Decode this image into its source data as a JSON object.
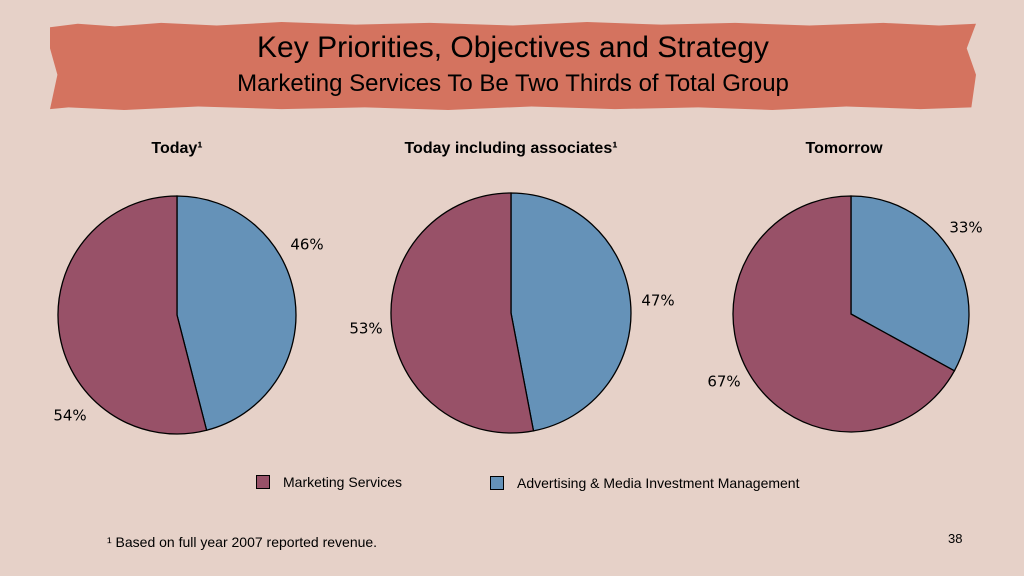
{
  "slide": {
    "title": "Key Priorities, Objectives and Strategy",
    "subtitle": "Marketing Services To Be Two Thirds of Total Group",
    "footnote": "¹ Based on full year 2007 reported revenue.",
    "page_number": "38"
  },
  "colors": {
    "marketing_services": "#985168",
    "advertising_media": "#6592b8",
    "banner": "#d4735f",
    "background": "#e6d1c8"
  },
  "legend": [
    {
      "label": "Marketing Services",
      "color": "#985168"
    },
    {
      "label": "Advertising & Media Investment Management",
      "color": "#6592b8"
    }
  ],
  "chart_data": [
    {
      "type": "pie",
      "title": "Today¹",
      "categories": [
        "Advertising & Media Investment Management",
        "Marketing Services"
      ],
      "values": [
        46,
        54
      ],
      "labels": [
        "46%",
        "54%"
      ]
    },
    {
      "type": "pie",
      "title": "Today including associates¹",
      "categories": [
        "Advertising & Media Investment Management",
        "Marketing Services"
      ],
      "values": [
        47,
        53
      ],
      "labels": [
        "47%",
        "53%"
      ]
    },
    {
      "type": "pie",
      "title": "Tomorrow",
      "categories": [
        "Advertising & Media Investment Management",
        "Marketing Services"
      ],
      "values": [
        33,
        67
      ],
      "labels": [
        "33%",
        "67%"
      ]
    }
  ]
}
